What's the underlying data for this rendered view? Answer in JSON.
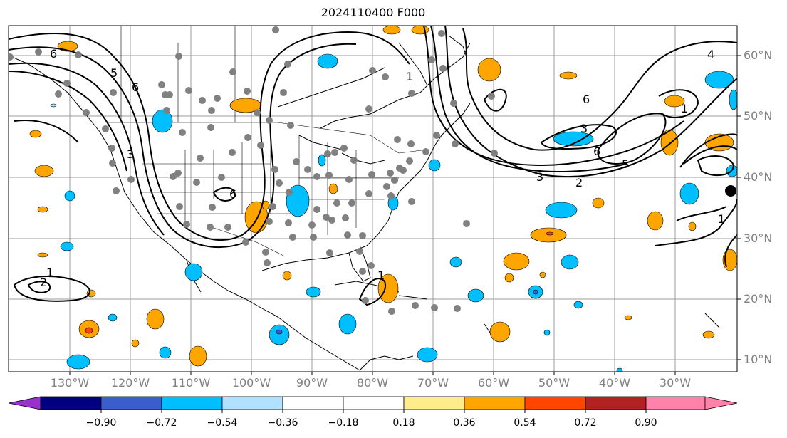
{
  "title": "2024110400 F000",
  "lat_labels": [
    "60°N",
    "50°N",
    "40°N",
    "30°N",
    "20°N",
    "10°N"
  ],
  "lon_labels": [
    "130°W",
    "120°W",
    "110°W",
    "100°W",
    "90°W",
    "80°W",
    "70°W",
    "60°W",
    "50°W",
    "40°W",
    "30°W"
  ],
  "colorbar": {
    "colors": [
      "#9932cc",
      "#000080",
      "#3a5fcd",
      "#00bfff",
      "#b0e2ff",
      "#ffffff",
      "#ffec8b",
      "#ffa500",
      "#ff4500",
      "#b22222",
      "#ff82ab"
    ],
    "tick_labels": [
      "−0.90",
      "−0.72",
      "−0.54",
      "−0.36",
      "−0.18",
      "0.18",
      "0.36",
      "0.54",
      "0.72",
      "0.90"
    ]
  },
  "contour_labels": [
    "6",
    "5",
    "6",
    "3",
    "1",
    "6",
    "1",
    "4",
    "6",
    "3",
    "6",
    "5",
    "3",
    "2",
    "1",
    "1",
    "2",
    "1"
  ]
}
